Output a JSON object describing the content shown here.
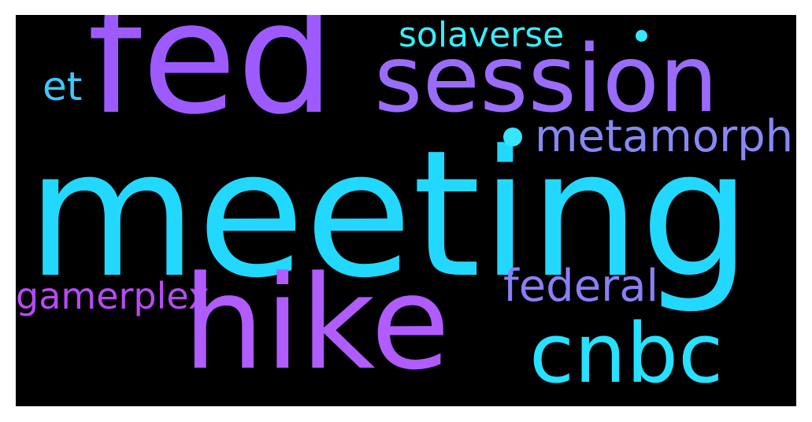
{
  "wordcloud": {
    "background": "#000000",
    "words": [
      {
        "text": "meeting",
        "color": "#22d8ff"
      },
      {
        "text": "fed",
        "color": "#9d5bff"
      },
      {
        "text": "session",
        "color": "#9a6cfb"
      },
      {
        "text": "hike",
        "color": "#b05cff"
      },
      {
        "text": "cnbc",
        "color": "#28e0ff"
      },
      {
        "text": "metamorph",
        "color": "#8888f4"
      },
      {
        "text": "federal",
        "color": "#8a7ff6"
      },
      {
        "text": "gamerplex",
        "color": "#b64bf2"
      },
      {
        "text": "solaverse",
        "color": "#35efff"
      },
      {
        "text": "et",
        "color": "#3ec8ff"
      },
      {
        "text": "dot-1",
        "color": "#35e6ff"
      },
      {
        "text": "dot-2",
        "color": "#35e6ff"
      }
    ]
  }
}
